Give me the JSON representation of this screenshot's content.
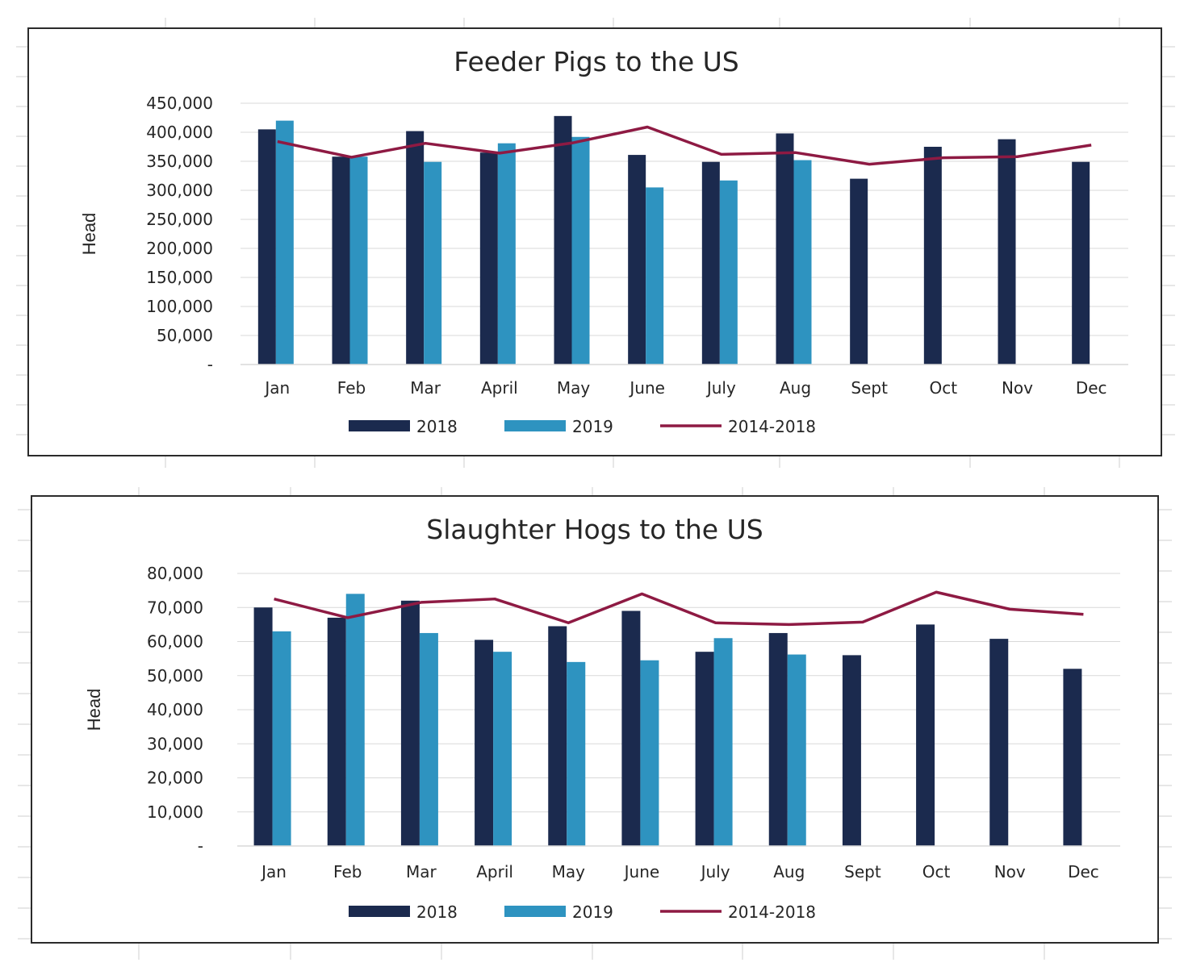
{
  "chart_data": [
    {
      "type": "bar",
      "title": "Feeder Pigs to the US",
      "xlabel": "",
      "ylabel": "Head",
      "ylim": [
        0,
        450000
      ],
      "ytick_values": [
        0,
        50000,
        100000,
        150000,
        200000,
        250000,
        300000,
        350000,
        400000,
        450000
      ],
      "ytick_labels": [
        "-",
        "50,000",
        "100,000",
        "150,000",
        "200,000",
        "250,000",
        "300,000",
        "350,000",
        "400,000",
        "450,000"
      ],
      "grid": true,
      "legend_position": "bottom",
      "categories": [
        "Jan",
        "Feb",
        "Mar",
        "April",
        "May",
        "June",
        "July",
        "Aug",
        "Sept",
        "Oct",
        "Nov",
        "Dec"
      ],
      "series": [
        {
          "name": "2018",
          "kind": "bar",
          "color": "#1b2a4e",
          "values": [
            405000,
            358000,
            402000,
            365000,
            428000,
            361000,
            349000,
            398000,
            320000,
            375000,
            388000,
            349000
          ]
        },
        {
          "name": "2019",
          "kind": "bar",
          "color": "#2e93c0",
          "values": [
            420000,
            358000,
            349000,
            381000,
            392000,
            305000,
            317000,
            352000,
            null,
            null,
            null,
            null
          ]
        },
        {
          "name": "2014-2018",
          "kind": "line",
          "color": "#8e1a43",
          "values": [
            384000,
            357000,
            381000,
            364000,
            382000,
            409000,
            362000,
            365000,
            345000,
            356000,
            358000,
            378000
          ]
        }
      ]
    },
    {
      "type": "bar",
      "title": "Slaughter Hogs to the US",
      "xlabel": "",
      "ylabel": "Head",
      "ylim": [
        0,
        80000
      ],
      "ytick_values": [
        0,
        10000,
        20000,
        30000,
        40000,
        50000,
        60000,
        70000,
        80000
      ],
      "ytick_labels": [
        "-",
        "10,000",
        "20,000",
        "30,000",
        "40,000",
        "50,000",
        "60,000",
        "70,000",
        "80,000"
      ],
      "grid": true,
      "legend_position": "bottom",
      "categories": [
        "Jan",
        "Feb",
        "Mar",
        "April",
        "May",
        "June",
        "July",
        "Aug",
        "Sept",
        "Oct",
        "Nov",
        "Dec"
      ],
      "series": [
        {
          "name": "2018",
          "kind": "bar",
          "color": "#1b2a4e",
          "values": [
            70000,
            67000,
            72000,
            60500,
            64500,
            69000,
            57000,
            62500,
            56000,
            65000,
            60800,
            52000
          ]
        },
        {
          "name": "2019",
          "kind": "bar",
          "color": "#2e93c0",
          "values": [
            63000,
            74000,
            62500,
            57000,
            54000,
            54500,
            61000,
            56200,
            null,
            null,
            null,
            null
          ]
        },
        {
          "name": "2014-2018",
          "kind": "line",
          "color": "#8e1a43",
          "values": [
            72500,
            67000,
            71500,
            72500,
            65500,
            74000,
            65500,
            65000,
            65700,
            74500,
            69500,
            68000
          ]
        }
      ]
    }
  ]
}
